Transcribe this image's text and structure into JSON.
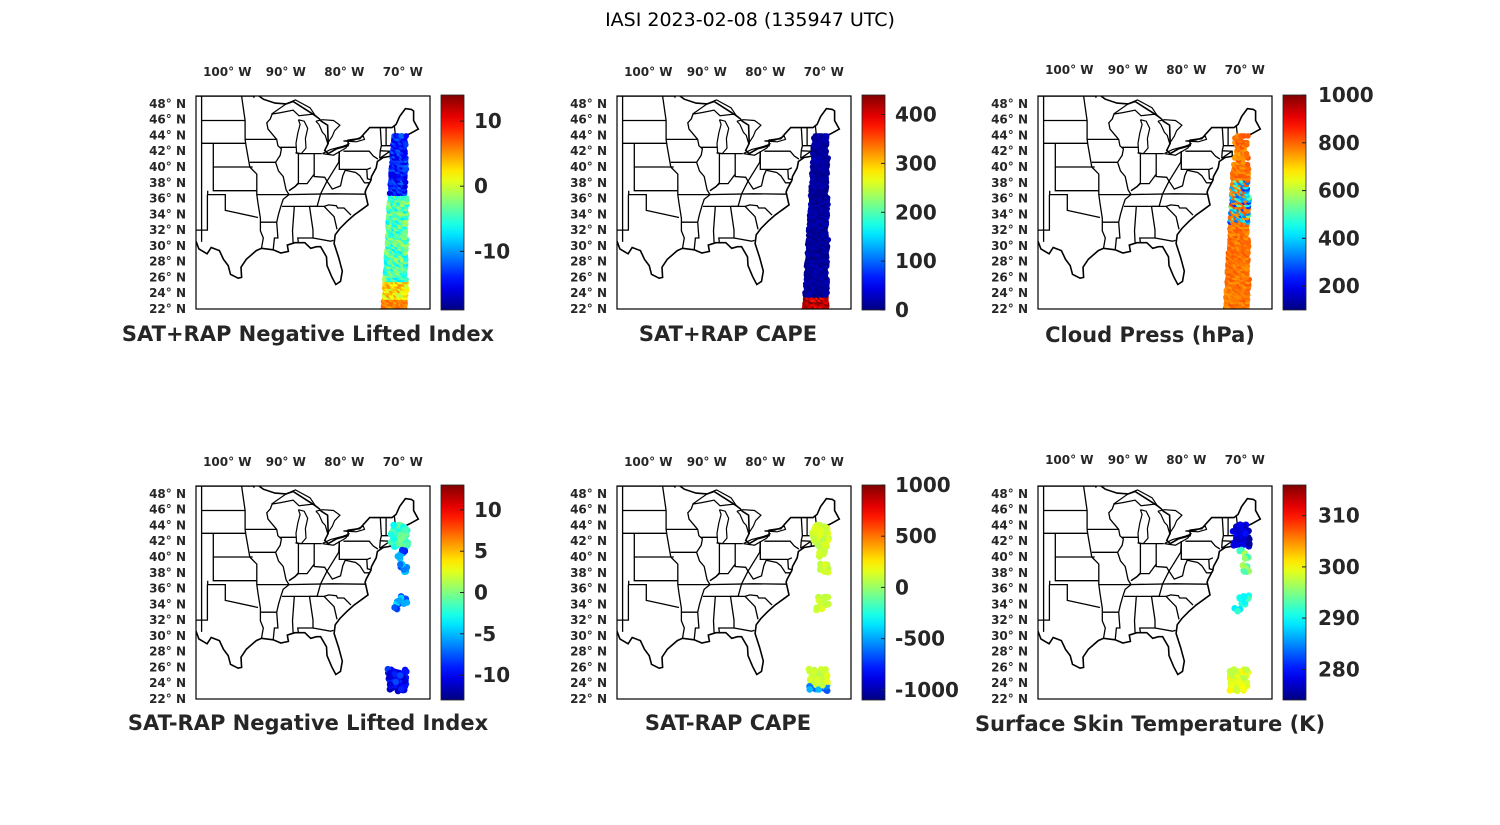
{
  "figure": {
    "title": "IASI 2023-02-08 (135947 UTC)"
  },
  "lon_ticks": [
    "100",
    "90",
    "80",
    "70"
  ],
  "lon_suffix": "W",
  "lat_ticks": [
    "48",
    "46",
    "44",
    "42",
    "40",
    "38",
    "36",
    "34",
    "32",
    "30",
    "28",
    "26",
    "24",
    "22"
  ],
  "lat_suffix": "N",
  "degree_symbol": "°",
  "colormap": "jet",
  "colors": {
    "map_lines": "#000000",
    "text": "#262626"
  },
  "panels": [
    {
      "title": "SAT+RAP Negative Lifted Index",
      "colorbar": {
        "ticks": [
          "10",
          "0",
          "-10"
        ],
        "tick_values": [
          10,
          0,
          -10
        ],
        "min": -19,
        "max": 14
      },
      "data": "dense IASI swath along the east coast (approx. 69–72°W, 22–44°N), mostly cyan/green values with dark blue north of 36°N and orange/red near 22–25°N"
    },
    {
      "title": "SAT+RAP CAPE",
      "colorbar": {
        "ticks": [
          "400",
          "300",
          "200",
          "100",
          "0"
        ],
        "tick_values": [
          400,
          300,
          200,
          100,
          0
        ],
        "min": 0,
        "max": 440
      },
      "data": "dense swath, near-zero (dark blue) almost everywhere, dark red high values near 22–24°N"
    },
    {
      "title": "Cloud Press (hPa)",
      "colorbar": {
        "ticks": [
          "1000",
          "800",
          "600",
          "400",
          "200"
        ],
        "tick_values": [
          1000,
          800,
          600,
          400,
          200
        ],
        "min": 100,
        "max": 1000
      },
      "data": "swath mostly orange (~850–950 hPa) with blue/cyan bands between 33–40°N and a few points off New England"
    },
    {
      "title": "SAT-RAP Negative Lifted Index",
      "colorbar": {
        "ticks": [
          "10",
          "5",
          "0",
          "-5",
          "-10"
        ],
        "tick_values": [
          10,
          5,
          0,
          -5,
          -10
        ],
        "min": -13,
        "max": 13
      },
      "data": "sparse clusters: cyan/green over New England, blue clusters near 34–40°N and dark blue near 22–26°N"
    },
    {
      "title": "SAT-RAP CAPE",
      "colorbar": {
        "ticks": [
          "1000",
          "500",
          "0",
          "-500",
          "-1000"
        ],
        "tick_values": [
          1000,
          500,
          0,
          -500,
          -1000
        ],
        "min": -1100,
        "max": 1000
      },
      "data": "sparse clusters, light green (~0) at most locations, cyan/blue near 22–24°N"
    },
    {
      "title": "Surface Skin Temperature (K)",
      "colorbar": {
        "ticks": [
          "310",
          "300",
          "290",
          "280"
        ],
        "tick_values": [
          310,
          300,
          290,
          280
        ],
        "min": 274,
        "max": 316
      },
      "data": "dark blue (~275 K) over New England, cyan near 34–38°N, yellow-green (~295–300 K) near 22–26°N"
    }
  ]
}
